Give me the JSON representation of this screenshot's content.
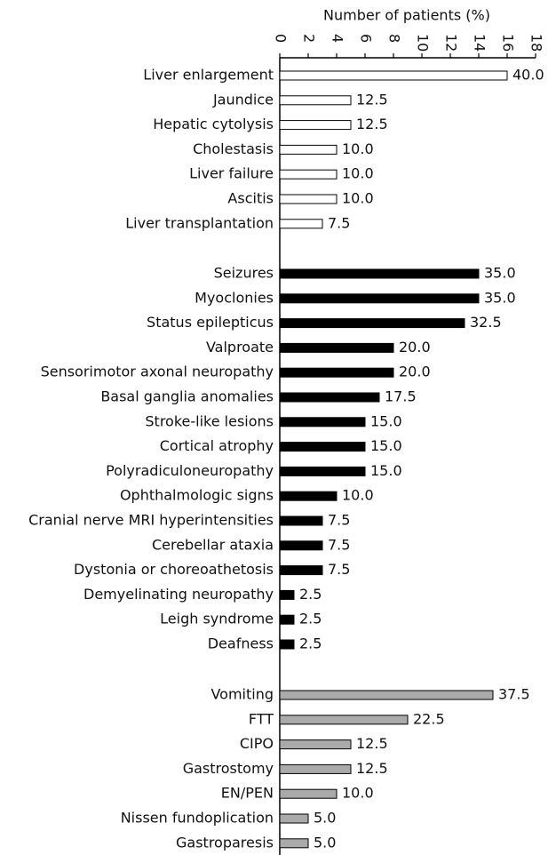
{
  "chart_data": [
    {
      "type": "bar",
      "orientation": "horizontal",
      "x_label": "Number of patients (%)",
      "xlim": [
        0,
        18
      ],
      "xticks": [
        0,
        2,
        4,
        6,
        8,
        10,
        12,
        14,
        16,
        18
      ],
      "color": "#ffffff",
      "categories": [
        "Liver enlargement",
        "Jaundice",
        "Hepatic cytolysis",
        "Cholestasis",
        "Liver failure",
        "Ascitis",
        "Liver transplantation"
      ],
      "values": [
        16,
        5,
        5,
        4,
        4,
        4,
        3
      ],
      "value_labels": [
        "40.0",
        "12.5",
        "12.5",
        "10.0",
        "10.0",
        "10.0",
        "7.5"
      ]
    },
    {
      "type": "bar",
      "orientation": "horizontal",
      "color": "#000000",
      "categories": [
        "Seizures",
        "Myoclonies",
        "Status epilepticus",
        "Valproate",
        "Sensorimotor axonal neuropathy",
        "Basal ganglia anomalies",
        "Stroke-like lesions",
        "Cortical atrophy",
        "Polyradiculoneuropathy",
        "Ophthalmologic signs",
        "Cranial nerve MRI hyperintensities",
        "Cerebellar ataxia",
        "Dystonia or choreoathetosis",
        "Demyelinating neuropathy",
        "Leigh syndrome",
        "Deafness"
      ],
      "values": [
        14,
        14,
        13,
        8,
        8,
        7,
        6,
        6,
        6,
        4,
        3,
        3,
        3,
        1,
        1,
        1
      ],
      "value_labels": [
        "35.0",
        "35.0",
        "32.5",
        "20.0",
        "20.0",
        "17.5",
        "15.0",
        "15.0",
        "15.0",
        "10.0",
        "7.5",
        "7.5",
        "7.5",
        "2.5",
        "2.5",
        "2.5"
      ]
    },
    {
      "type": "bar",
      "orientation": "horizontal",
      "color": "#aaaaaa",
      "categories": [
        "Vomiting",
        "FTT",
        "CIPO",
        "Gastrostomy",
        "EN/PEN",
        "Nissen fundoplication",
        "Gastroparesis"
      ],
      "values": [
        15,
        9,
        5,
        5,
        4,
        2,
        2
      ],
      "value_labels": [
        "37.5",
        "22.5",
        "12.5",
        "12.5",
        "10.0",
        "5.0",
        "5.0"
      ]
    }
  ]
}
